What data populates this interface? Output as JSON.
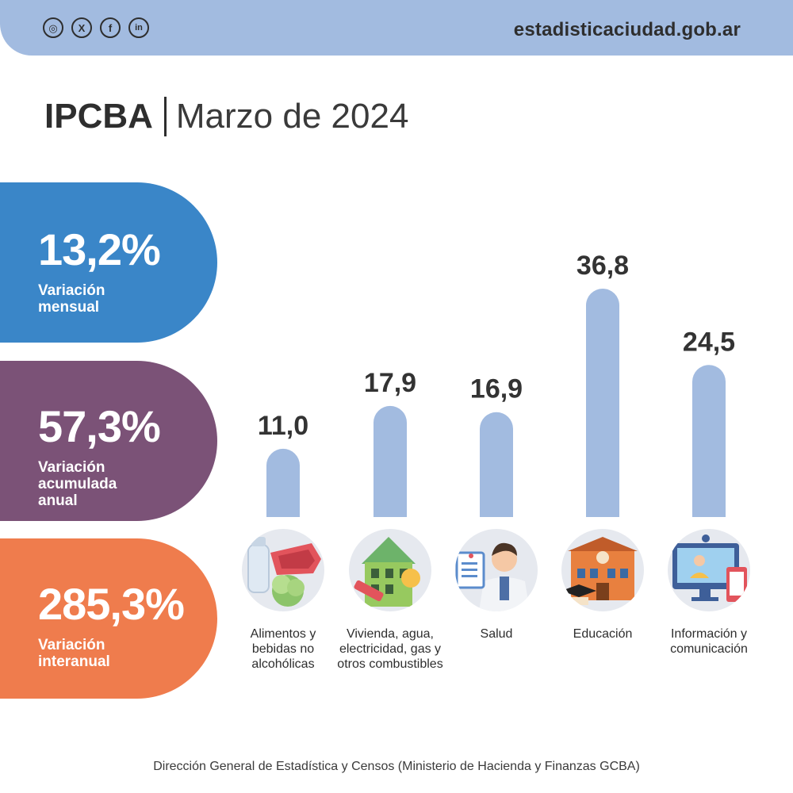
{
  "header": {
    "site": "estadisticaciudad.gob.ar",
    "social": [
      {
        "icon": "instagram-icon",
        "glyph": "◎"
      },
      {
        "icon": "x-icon",
        "glyph": "X"
      },
      {
        "icon": "facebook-icon",
        "glyph": "f"
      },
      {
        "icon": "linkedin-icon",
        "glyph": "in"
      }
    ]
  },
  "title": {
    "main": "IPCBA",
    "sub": "Marzo de 2024"
  },
  "stats": [
    {
      "value": "13,2%",
      "label": "Variación\nmensual",
      "color": "#3a86c8"
    },
    {
      "value": "57,3%",
      "label": "Variación\nacumulada\nanual",
      "color": "#7b5277"
    },
    {
      "value": "285,3%",
      "label": "Variación\ninteranual",
      "color": "#ef7c4d"
    }
  ],
  "chart_data": {
    "type": "bar",
    "categories": [
      "Alimentos y bebidas no alcohólicas",
      "Vivienda, agua, electricidad, gas y otros combustibles",
      "Salud",
      "Educación",
      "Información y comunicación"
    ],
    "values": [
      11.0,
      17.9,
      16.9,
      36.8,
      24.5
    ],
    "value_labels": [
      "11,0",
      "17,9",
      "16,9",
      "36,8",
      "24,5"
    ],
    "bar_color": "#a2bbe0",
    "ylim": [
      0,
      36.8
    ]
  },
  "category_icons": [
    "food-icon",
    "house-icon",
    "doctor-icon",
    "school-icon",
    "computer-icon"
  ],
  "footer": "Dirección General de Estadística y Censos (Ministerio de Hacienda y Finanzas GCBA)"
}
